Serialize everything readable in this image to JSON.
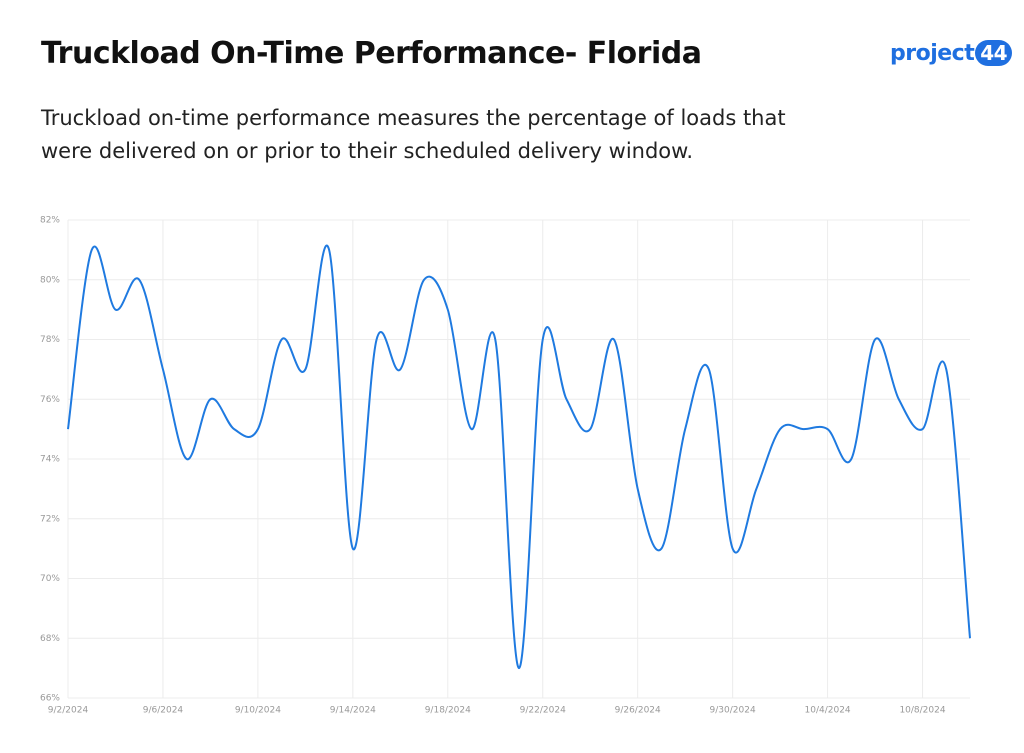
{
  "logo": {
    "text": "project",
    "badge": "44"
  },
  "chart_data": {
    "type": "line",
    "title": "Truckload On-Time Performance- Florida",
    "subtitle": "Truckload on-time performance measures the percentage of loads that were delivered on or prior to their scheduled delivery window.",
    "categories": [
      "9/2/2024",
      null,
      null,
      null,
      "9/6/2024",
      null,
      null,
      null,
      "9/10/2024",
      null,
      null,
      null,
      "9/14/2024",
      null,
      null,
      null,
      "9/18/2024",
      null,
      null,
      null,
      "9/22/2024",
      null,
      null,
      null,
      "9/26/2024",
      null,
      null,
      null,
      "9/30/2024",
      null,
      null,
      null,
      "10/4/2024",
      null,
      null,
      null,
      "10/8/2024",
      null,
      null
    ],
    "series": [
      {
        "color": "#1f7ae0",
        "values": [
          75,
          81,
          79,
          80,
          77,
          74,
          76,
          75,
          75,
          78,
          77,
          81,
          71,
          78,
          77,
          80,
          79,
          75,
          78,
          67,
          78,
          76,
          75,
          78,
          73,
          71,
          75,
          77,
          71,
          73,
          75,
          75,
          75,
          74,
          78,
          76,
          75,
          77,
          68
        ]
      }
    ],
    "ylim": [
      66,
      82
    ],
    "yticks": [
      {
        "value": 66,
        "label": "66%"
      },
      {
        "value": 68,
        "label": "68%"
      },
      {
        "value": 70,
        "label": "70%"
      },
      {
        "value": 72,
        "label": "72%"
      },
      {
        "value": 74,
        "label": "74%"
      },
      {
        "value": 76,
        "label": "76%"
      },
      {
        "value": 78,
        "label": "78%"
      },
      {
        "value": 80,
        "label": "80%"
      },
      {
        "value": 82,
        "label": "82%"
      }
    ],
    "grid": true
  }
}
